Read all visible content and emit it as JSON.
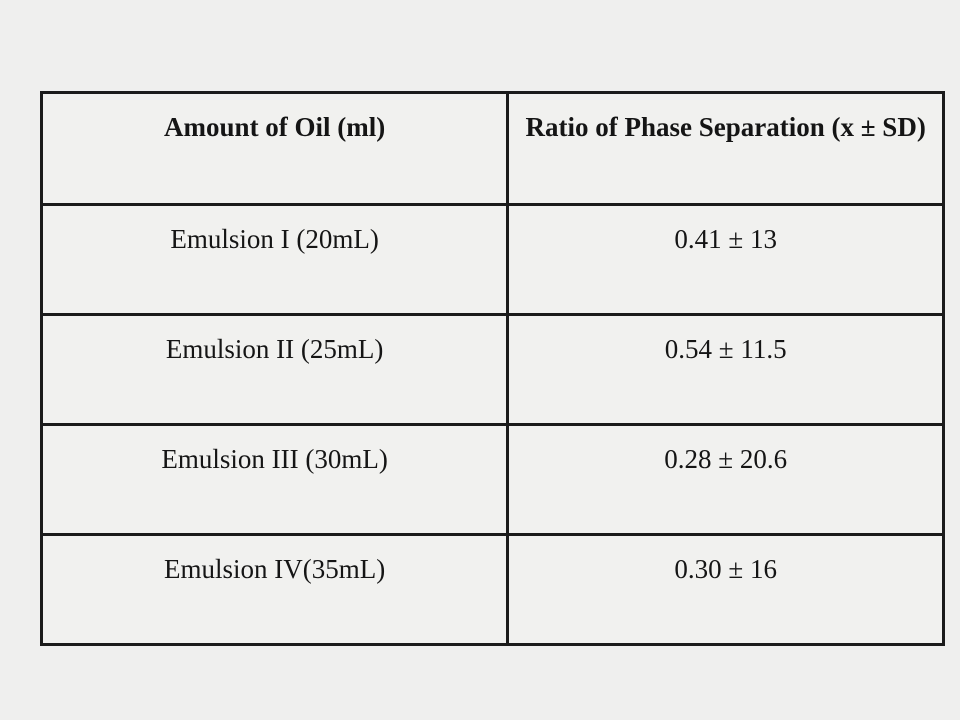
{
  "page": {
    "background_color": "#efefee",
    "table_border_color": "#1b1b1b",
    "cell_background_color": "#f1f1ef",
    "text_color": "#151515"
  },
  "chart_data": {
    "type": "table",
    "title": "",
    "columns": [
      "Amount of Oil (ml)",
      "Ratio of Phase Separation (x ± SD)"
    ],
    "rows": [
      [
        "Emulsion I (20mL)",
        "0.41 ± 13"
      ],
      [
        "Emulsion II (25mL)",
        "0.54 ± 11.5"
      ],
      [
        "Emulsion III (30mL)",
        "0.28 ± 20.6"
      ],
      [
        "Emulsion IV(35mL)",
        "0.30 ± 16"
      ]
    ],
    "notes": {
      "oil_amounts_ml": [
        20,
        25,
        30,
        35
      ],
      "ratio_means": [
        0.41,
        0.54,
        0.28,
        0.3
      ],
      "ratio_sds": [
        13,
        11.5,
        20.6,
        16
      ]
    }
  }
}
